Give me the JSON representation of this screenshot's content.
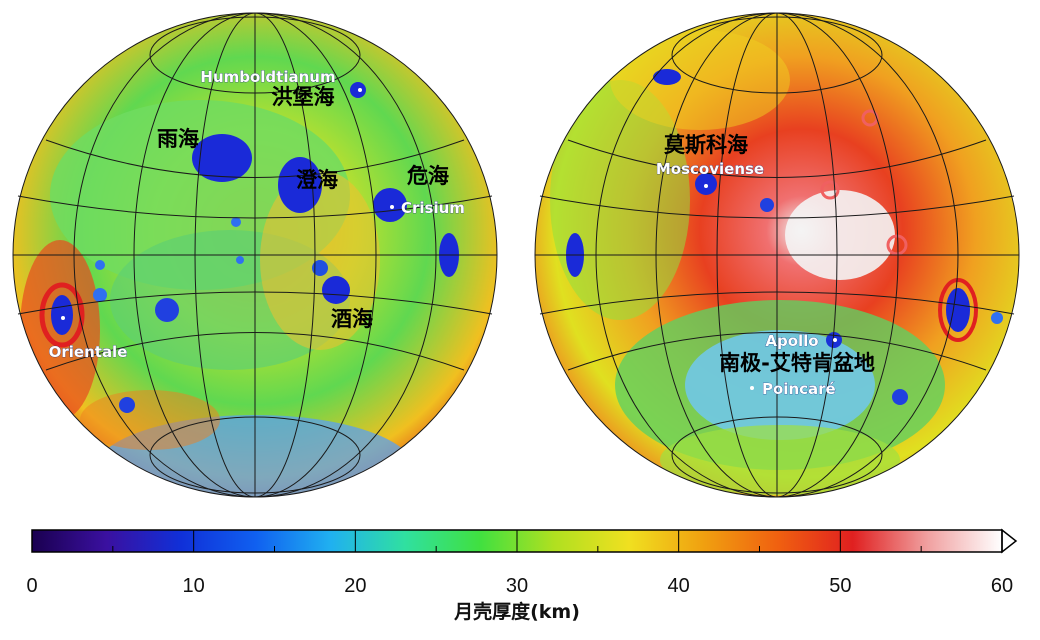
{
  "left_hemisphere": {
    "labels": [
      {
        "id": "humboldtianum",
        "text": "Humboldtianum",
        "style": "white"
      },
      {
        "id": "hongbao",
        "text": "洪堡海",
        "style": "black"
      },
      {
        "id": "yuhai",
        "text": "雨海",
        "style": "black"
      },
      {
        "id": "chenghai",
        "text": "澄海",
        "style": "black"
      },
      {
        "id": "weihai",
        "text": "危海",
        "style": "black"
      },
      {
        "id": "crisium",
        "text": "Crisium",
        "style": "white"
      },
      {
        "id": "jiuhai",
        "text": "酒海",
        "style": "black"
      },
      {
        "id": "orientale",
        "text": "Orientale",
        "style": "white"
      }
    ]
  },
  "right_hemisphere": {
    "labels": [
      {
        "id": "mosikehai",
        "text": "莫斯科海",
        "style": "black"
      },
      {
        "id": "moscoviense",
        "text": "Moscoviense",
        "style": "white"
      },
      {
        "id": "apollo",
        "text": "Apollo",
        "style": "white"
      },
      {
        "id": "spa",
        "text": "南极-艾特肯盆地",
        "style": "black"
      },
      {
        "id": "poincare",
        "text": "Poincaré",
        "style": "white"
      }
    ]
  },
  "colorbar": {
    "title": "月壳厚度(km)",
    "min": 0,
    "max": 60,
    "tick_labels": [
      "0",
      "10",
      "20",
      "30",
      "40",
      "50",
      "60"
    ],
    "colors": [
      "#1a0050",
      "#3a10a0",
      "#1030d8",
      "#1060f0",
      "#20b0f0",
      "#30e0a0",
      "#40e040",
      "#b0e020",
      "#f0e020",
      "#f0a010",
      "#f06010",
      "#e02020",
      "#f0a0a0",
      "#ffffff"
    ]
  }
}
